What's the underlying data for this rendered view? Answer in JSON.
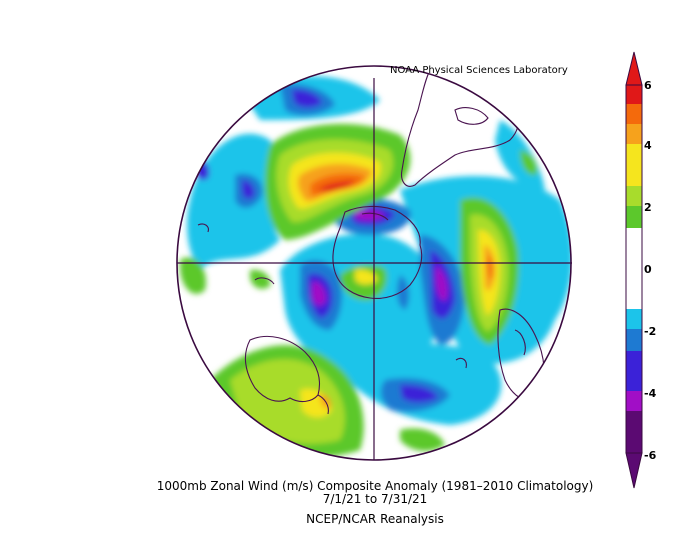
{
  "map": {
    "credit": "NOAA Physical Sciences Laboratory",
    "caption_line1": "1000mb Zonal Wind (m/s) Composite Anomaly (1981–2010 Climatology)",
    "caption_line2": "7/1/21   to 7/31/21",
    "caption_line3": "NCEP/NCAR Reanalysis",
    "projection": "south polar stereographic",
    "colorbar": {
      "ticks": [
        "6",
        "4",
        "2",
        "0",
        "-2",
        "-4",
        "-6"
      ],
      "colors": [
        "#e01818",
        "#f46a0c",
        "#f6a21c",
        "#f5e51e",
        "#a8dc2c",
        "#5cc82c",
        "#ffffff",
        "#ffffff",
        "#1cc4ea",
        "#1e7ad2",
        "#3b22d8",
        "#a10ec6",
        "#5b0a72"
      ]
    }
  }
}
